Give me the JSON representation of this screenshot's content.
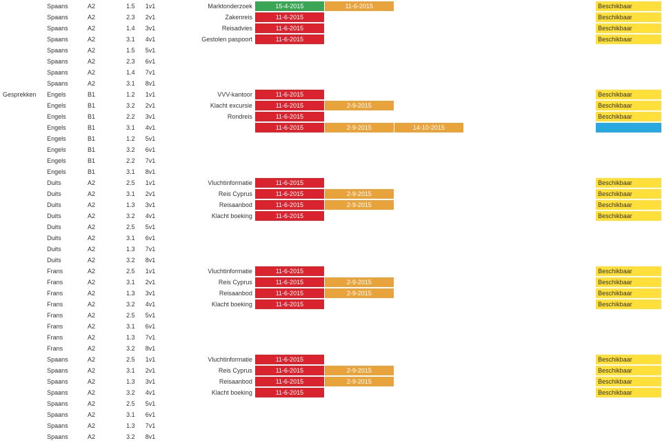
{
  "colors": {
    "green": {
      "bg": "#3aa655",
      "fg": "#ffffff"
    },
    "red": {
      "bg": "#d9232e",
      "fg": "#ffffff"
    },
    "orange": {
      "bg": "#e8a33d",
      "fg": "#ffffff"
    },
    "cyan": {
      "bg": "#2aa9e0",
      "fg": "#ffffff"
    },
    "yellow": {
      "bg": "#ffe03a",
      "fg": "#333333"
    },
    "none": {
      "bg": "#ffffff",
      "fg": "#333333"
    }
  },
  "rows": [
    {
      "cat": "",
      "lang": "Spaans",
      "lvl": "A2",
      "s1": "1.5",
      "s2": "1v1",
      "desc": "Marktonderzoek",
      "d1": {
        "t": "15-4-2015",
        "c": "green"
      },
      "d2": {
        "t": "11-6-2015",
        "c": "orange"
      },
      "d3": {
        "t": "",
        "c": "none"
      },
      "stat": "Beschikbaar"
    },
    {
      "cat": "",
      "lang": "Spaans",
      "lvl": "A2",
      "s1": "2.3",
      "s2": "2v1",
      "desc": "Zakenreis",
      "d1": {
        "t": "11-6-2015",
        "c": "red"
      },
      "d2": {
        "t": "",
        "c": "none"
      },
      "d3": {
        "t": "",
        "c": "none"
      },
      "stat": "Beschikbaar"
    },
    {
      "cat": "",
      "lang": "Spaans",
      "lvl": "A2",
      "s1": "1.4",
      "s2": "3v1",
      "desc": "Reisadvies",
      "d1": {
        "t": "11-6-2015",
        "c": "red"
      },
      "d2": {
        "t": "",
        "c": "none"
      },
      "d3": {
        "t": "",
        "c": "none"
      },
      "stat": "Beschikbaar"
    },
    {
      "cat": "",
      "lang": "Spaans",
      "lvl": "A2",
      "s1": "3.1",
      "s2": "4v1",
      "desc": "Gestolen paspoort",
      "d1": {
        "t": "11-6-2015",
        "c": "red"
      },
      "d2": {
        "t": "",
        "c": "none"
      },
      "d3": {
        "t": "",
        "c": "none"
      },
      "stat": "Beschikbaar"
    },
    {
      "cat": "",
      "lang": "Spaans",
      "lvl": "A2",
      "s1": "1.5",
      "s2": "5v1",
      "desc": "",
      "d1": {
        "t": "",
        "c": "none"
      },
      "d2": {
        "t": "",
        "c": "none"
      },
      "d3": {
        "t": "",
        "c": "none"
      },
      "stat": ""
    },
    {
      "cat": "",
      "lang": "Spaans",
      "lvl": "A2",
      "s1": "2.3",
      "s2": "6v1",
      "desc": "",
      "d1": {
        "t": "",
        "c": "none"
      },
      "d2": {
        "t": "",
        "c": "none"
      },
      "d3": {
        "t": "",
        "c": "none"
      },
      "stat": ""
    },
    {
      "cat": "",
      "lang": "Spaans",
      "lvl": "A2",
      "s1": "1.4",
      "s2": "7v1",
      "desc": "",
      "d1": {
        "t": "",
        "c": "none"
      },
      "d2": {
        "t": "",
        "c": "none"
      },
      "d3": {
        "t": "",
        "c": "none"
      },
      "stat": ""
    },
    {
      "cat": "",
      "lang": "Spaans",
      "lvl": "A2",
      "s1": "3.1",
      "s2": "8v1",
      "desc": "",
      "d1": {
        "t": "",
        "c": "none"
      },
      "d2": {
        "t": "",
        "c": "none"
      },
      "d3": {
        "t": "",
        "c": "none"
      },
      "stat": ""
    },
    {
      "cat": "Gesprekken",
      "lang": "Engels",
      "lvl": "B1",
      "s1": "1.2",
      "s2": "1v1",
      "desc": "VVV-kantoor",
      "d1": {
        "t": "11-6-2015",
        "c": "red"
      },
      "d2": {
        "t": "",
        "c": "none"
      },
      "d3": {
        "t": "",
        "c": "none"
      },
      "stat": "Beschikbaar"
    },
    {
      "cat": "",
      "lang": "Engels",
      "lvl": "B1",
      "s1": "3.2",
      "s2": "2v1",
      "desc": "Klacht excursie",
      "d1": {
        "t": "11-6-2015",
        "c": "red"
      },
      "d2": {
        "t": "2-9-2015",
        "c": "orange"
      },
      "d3": {
        "t": "",
        "c": "none"
      },
      "stat": "Beschikbaar"
    },
    {
      "cat": "",
      "lang": "Engels",
      "lvl": "B1",
      "s1": "2.2",
      "s2": "3v1",
      "desc": "Rondreis",
      "d1": {
        "t": "11-6-2015",
        "c": "red"
      },
      "d2": {
        "t": "",
        "c": "none"
      },
      "d3": {
        "t": "",
        "c": "none"
      },
      "stat": "Beschikbaar"
    },
    {
      "cat": "",
      "lang": "Engels",
      "lvl": "B1",
      "s1": "3.1",
      "s2": "4v1",
      "desc": "",
      "d1": {
        "t": "11-6-2015",
        "c": "red"
      },
      "d2": {
        "t": "2-9-2015",
        "c": "orange"
      },
      "d3": {
        "t": "14-10-2015",
        "c": "orange"
      },
      "stat": "",
      "statc": "cyan"
    },
    {
      "cat": "",
      "lang": "Engels",
      "lvl": "B1",
      "s1": "1.2",
      "s2": "5v1",
      "desc": "",
      "d1": {
        "t": "",
        "c": "none"
      },
      "d2": {
        "t": "",
        "c": "none"
      },
      "d3": {
        "t": "",
        "c": "none"
      },
      "stat": ""
    },
    {
      "cat": "",
      "lang": "Engels",
      "lvl": "B1",
      "s1": "3.2",
      "s2": "6v1",
      "desc": "",
      "d1": {
        "t": "",
        "c": "none"
      },
      "d2": {
        "t": "",
        "c": "none"
      },
      "d3": {
        "t": "",
        "c": "none"
      },
      "stat": ""
    },
    {
      "cat": "",
      "lang": "Engels",
      "lvl": "B1",
      "s1": "2.2",
      "s2": "7v1",
      "desc": "",
      "d1": {
        "t": "",
        "c": "none"
      },
      "d2": {
        "t": "",
        "c": "none"
      },
      "d3": {
        "t": "",
        "c": "none"
      },
      "stat": ""
    },
    {
      "cat": "",
      "lang": "Engels",
      "lvl": "B1",
      "s1": "3.1",
      "s2": "8v1",
      "desc": "",
      "d1": {
        "t": "",
        "c": "none"
      },
      "d2": {
        "t": "",
        "c": "none"
      },
      "d3": {
        "t": "",
        "c": "none"
      },
      "stat": ""
    },
    {
      "cat": "",
      "lang": "Duits",
      "lvl": "A2",
      "s1": "2.5",
      "s2": "1v1",
      "desc": "Vluchtinformatie",
      "d1": {
        "t": "11-6-2015",
        "c": "red"
      },
      "d2": {
        "t": "",
        "c": "none"
      },
      "d3": {
        "t": "",
        "c": "none"
      },
      "stat": "Beschikbaar"
    },
    {
      "cat": "",
      "lang": "Duits",
      "lvl": "A2",
      "s1": "3.1",
      "s2": "2v1",
      "desc": "Reis Cyprus",
      "d1": {
        "t": "11-6-2015",
        "c": "red"
      },
      "d2": {
        "t": "2-9-2015",
        "c": "orange"
      },
      "d3": {
        "t": "",
        "c": "none"
      },
      "stat": "Beschikbaar"
    },
    {
      "cat": "",
      "lang": "Duits",
      "lvl": "A2",
      "s1": "1.3",
      "s2": "3v1",
      "desc": "Reisaanbod",
      "d1": {
        "t": "11-6-2015",
        "c": "red"
      },
      "d2": {
        "t": "2-9-2015",
        "c": "orange"
      },
      "d3": {
        "t": "",
        "c": "none"
      },
      "stat": "Beschikbaar"
    },
    {
      "cat": "",
      "lang": "Duits",
      "lvl": "A2",
      "s1": "3.2",
      "s2": "4v1",
      "desc": "Klacht boeking",
      "d1": {
        "t": "11-6-2015",
        "c": "red"
      },
      "d2": {
        "t": "",
        "c": "none"
      },
      "d3": {
        "t": "",
        "c": "none"
      },
      "stat": "Beschikbaar"
    },
    {
      "cat": "",
      "lang": "Duits",
      "lvl": "A2",
      "s1": "2.5",
      "s2": "5v1",
      "desc": "",
      "d1": {
        "t": "",
        "c": "none"
      },
      "d2": {
        "t": "",
        "c": "none"
      },
      "d3": {
        "t": "",
        "c": "none"
      },
      "stat": ""
    },
    {
      "cat": "",
      "lang": "Duits",
      "lvl": "A2",
      "s1": "3.1",
      "s2": "6v1",
      "desc": "",
      "d1": {
        "t": "",
        "c": "none"
      },
      "d2": {
        "t": "",
        "c": "none"
      },
      "d3": {
        "t": "",
        "c": "none"
      },
      "stat": ""
    },
    {
      "cat": "",
      "lang": "Duits",
      "lvl": "A2",
      "s1": "1.3",
      "s2": "7v1",
      "desc": "",
      "d1": {
        "t": "",
        "c": "none"
      },
      "d2": {
        "t": "",
        "c": "none"
      },
      "d3": {
        "t": "",
        "c": "none"
      },
      "stat": ""
    },
    {
      "cat": "",
      "lang": "Duits",
      "lvl": "A2",
      "s1": "3.2",
      "s2": "8v1",
      "desc": "",
      "d1": {
        "t": "",
        "c": "none"
      },
      "d2": {
        "t": "",
        "c": "none"
      },
      "d3": {
        "t": "",
        "c": "none"
      },
      "stat": ""
    },
    {
      "cat": "",
      "lang": "Frans",
      "lvl": "A2",
      "s1": "2.5",
      "s2": "1v1",
      "desc": "Vluchtinformatie",
      "d1": {
        "t": "11-6-2015",
        "c": "red"
      },
      "d2": {
        "t": "",
        "c": "none"
      },
      "d3": {
        "t": "",
        "c": "none"
      },
      "stat": "Beschikbaar"
    },
    {
      "cat": "",
      "lang": "Frans",
      "lvl": "A2",
      "s1": "3.1",
      "s2": "2v1",
      "desc": "Reis Cyprus",
      "d1": {
        "t": "11-6-2015",
        "c": "red"
      },
      "d2": {
        "t": "2-9-2015",
        "c": "orange"
      },
      "d3": {
        "t": "",
        "c": "none"
      },
      "stat": "Beschikbaar"
    },
    {
      "cat": "",
      "lang": "Frans",
      "lvl": "A2",
      "s1": "1.3",
      "s2": "3v1",
      "desc": "Reisaanbod",
      "d1": {
        "t": "11-6-2015",
        "c": "red"
      },
      "d2": {
        "t": "2-9-2015",
        "c": "orange"
      },
      "d3": {
        "t": "",
        "c": "none"
      },
      "stat": "Beschikbaar"
    },
    {
      "cat": "",
      "lang": "Frans",
      "lvl": "A2",
      "s1": "3.2",
      "s2": "4v1",
      "desc": "Klacht boeking",
      "d1": {
        "t": "11-6-2015",
        "c": "red"
      },
      "d2": {
        "t": "",
        "c": "none"
      },
      "d3": {
        "t": "",
        "c": "none"
      },
      "stat": "Beschikbaar"
    },
    {
      "cat": "",
      "lang": "Frans",
      "lvl": "A2",
      "s1": "2.5",
      "s2": "5v1",
      "desc": "",
      "d1": {
        "t": "",
        "c": "none"
      },
      "d2": {
        "t": "",
        "c": "none"
      },
      "d3": {
        "t": "",
        "c": "none"
      },
      "stat": ""
    },
    {
      "cat": "",
      "lang": "Frans",
      "lvl": "A2",
      "s1": "3.1",
      "s2": "6v1",
      "desc": "",
      "d1": {
        "t": "",
        "c": "none"
      },
      "d2": {
        "t": "",
        "c": "none"
      },
      "d3": {
        "t": "",
        "c": "none"
      },
      "stat": ""
    },
    {
      "cat": "",
      "lang": "Frans",
      "lvl": "A2",
      "s1": "1.3",
      "s2": "7v1",
      "desc": "",
      "d1": {
        "t": "",
        "c": "none"
      },
      "d2": {
        "t": "",
        "c": "none"
      },
      "d3": {
        "t": "",
        "c": "none"
      },
      "stat": ""
    },
    {
      "cat": "",
      "lang": "Frans",
      "lvl": "A2",
      "s1": "3.2",
      "s2": "8v1",
      "desc": "",
      "d1": {
        "t": "",
        "c": "none"
      },
      "d2": {
        "t": "",
        "c": "none"
      },
      "d3": {
        "t": "",
        "c": "none"
      },
      "stat": ""
    },
    {
      "cat": "",
      "lang": "Spaans",
      "lvl": "A2",
      "s1": "2.5",
      "s2": "1v1",
      "desc": "Vluchtinformatie",
      "d1": {
        "t": "11-6-2015",
        "c": "red"
      },
      "d2": {
        "t": "",
        "c": "none"
      },
      "d3": {
        "t": "",
        "c": "none"
      },
      "stat": "Beschikbaar"
    },
    {
      "cat": "",
      "lang": "Spaans",
      "lvl": "A2",
      "s1": "3.1",
      "s2": "2v1",
      "desc": "Reis Cyprus",
      "d1": {
        "t": "11-6-2015",
        "c": "red"
      },
      "d2": {
        "t": "2-9-2015",
        "c": "orange"
      },
      "d3": {
        "t": "",
        "c": "none"
      },
      "stat": "Beschikbaar"
    },
    {
      "cat": "",
      "lang": "Spaans",
      "lvl": "A2",
      "s1": "1.3",
      "s2": "3v1",
      "desc": "Reisaanbod",
      "d1": {
        "t": "11-6-2015",
        "c": "red"
      },
      "d2": {
        "t": "2-9-2015",
        "c": "orange"
      },
      "d3": {
        "t": "",
        "c": "none"
      },
      "stat": "Beschikbaar"
    },
    {
      "cat": "",
      "lang": "Spaans",
      "lvl": "A2",
      "s1": "3.2",
      "s2": "4v1",
      "desc": "Klacht boeking",
      "d1": {
        "t": "11-6-2015",
        "c": "red"
      },
      "d2": {
        "t": "",
        "c": "none"
      },
      "d3": {
        "t": "",
        "c": "none"
      },
      "stat": "Beschikbaar"
    },
    {
      "cat": "",
      "lang": "Spaans",
      "lvl": "A2",
      "s1": "2.5",
      "s2": "5v1",
      "desc": "",
      "d1": {
        "t": "",
        "c": "none"
      },
      "d2": {
        "t": "",
        "c": "none"
      },
      "d3": {
        "t": "",
        "c": "none"
      },
      "stat": ""
    },
    {
      "cat": "",
      "lang": "Spaans",
      "lvl": "A2",
      "s1": "3.1",
      "s2": "6v1",
      "desc": "",
      "d1": {
        "t": "",
        "c": "none"
      },
      "d2": {
        "t": "",
        "c": "none"
      },
      "d3": {
        "t": "",
        "c": "none"
      },
      "stat": ""
    },
    {
      "cat": "",
      "lang": "Spaans",
      "lvl": "A2",
      "s1": "1.3",
      "s2": "7v1",
      "desc": "",
      "d1": {
        "t": "",
        "c": "none"
      },
      "d2": {
        "t": "",
        "c": "none"
      },
      "d3": {
        "t": "",
        "c": "none"
      },
      "stat": ""
    },
    {
      "cat": "",
      "lang": "Spaans",
      "lvl": "A2",
      "s1": "3.2",
      "s2": "8v1",
      "desc": "",
      "d1": {
        "t": "",
        "c": "none"
      },
      "d2": {
        "t": "",
        "c": "none"
      },
      "d3": {
        "t": "",
        "c": "none"
      },
      "stat": ""
    }
  ]
}
